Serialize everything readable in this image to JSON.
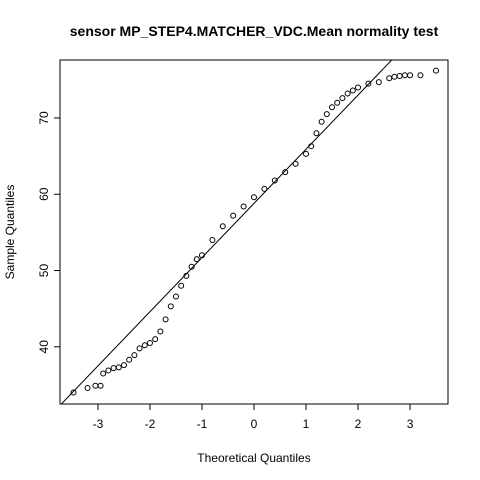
{
  "chart_data": {
    "type": "scatter",
    "title": "sensor MP_STEP4.MATCHER_VDC.Mean normality test",
    "xlabel": "Theoretical Quantiles",
    "ylabel": "Sample Quantiles",
    "x": [
      -3.47,
      -3.2,
      -3.05,
      -2.95,
      -2.9,
      -2.8,
      -2.7,
      -2.6,
      -2.5,
      -2.4,
      -2.3,
      -2.2,
      -2.1,
      -2.0,
      -1.9,
      -1.8,
      -1.7,
      -1.6,
      -1.5,
      -1.4,
      -1.3,
      -1.2,
      -1.1,
      -1.0,
      -0.8,
      -0.6,
      -0.4,
      -0.2,
      0,
      0.2,
      0.4,
      0.6,
      0.8,
      1.0,
      1.1,
      1.2,
      1.3,
      1.4,
      1.5,
      1.6,
      1.7,
      1.8,
      1.9,
      2.0,
      2.2,
      2.4,
      2.6,
      2.7,
      2.8,
      2.9,
      3.0,
      3.2,
      3.5
    ],
    "values": [
      34.0,
      34.6,
      34.9,
      34.9,
      36.5,
      36.9,
      37.2,
      37.3,
      37.6,
      38.3,
      38.9,
      39.8,
      40.2,
      40.5,
      41.0,
      42.0,
      43.6,
      45.3,
      46.6,
      48.0,
      49.3,
      50.5,
      51.5,
      52.0,
      54.0,
      55.8,
      57.2,
      58.4,
      59.6,
      60.7,
      61.8,
      62.9,
      64.0,
      65.3,
      66.3,
      68.0,
      69.5,
      70.5,
      71.4,
      72.0,
      72.6,
      73.2,
      73.6,
      74.0,
      74.5,
      74.7,
      75.2,
      75.4,
      75.5,
      75.6,
      75.6,
      75.6,
      76.2
    ],
    "color": "#000000",
    "qqline": {
      "intercept": 58.8,
      "slope": 7.1
    },
    "xlim": [
      -3.73,
      3.73
    ],
    "ylim": [
      32.5,
      77.6
    ],
    "xticks": [
      -3,
      -2,
      -1,
      0,
      1,
      2,
      3
    ],
    "yticks": [
      40,
      50,
      60,
      70
    ]
  }
}
